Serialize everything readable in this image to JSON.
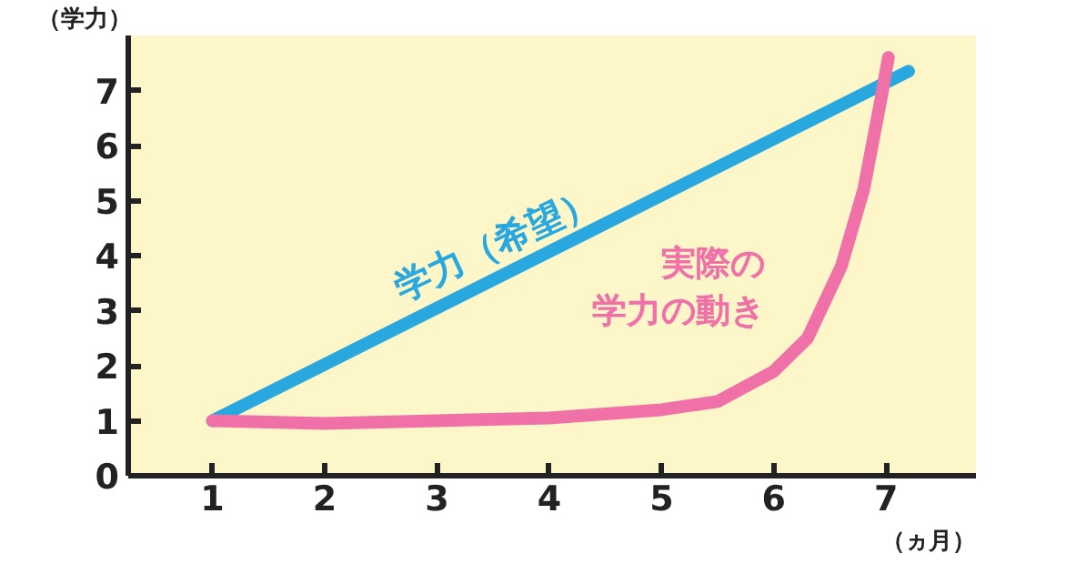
{
  "chart_data": {
    "type": "line",
    "xlabel": "（ヵ月）",
    "ylabel": "（学力）",
    "xlim": [
      0.25,
      7.8
    ],
    "ylim": [
      0,
      8
    ],
    "xticks": [
      1,
      2,
      3,
      4,
      5,
      6,
      7
    ],
    "yticks": [
      0,
      1,
      2,
      3,
      4,
      5,
      6,
      7
    ],
    "series": [
      {
        "name": "学力（希望）",
        "color": "#29a8e0",
        "x": [
          1,
          7.2
        ],
        "values": [
          1,
          7.35
        ]
      },
      {
        "name": "実際の学力の動き",
        "color": "#f070a8",
        "x": [
          1,
          2,
          3,
          4,
          5,
          5.5,
          6,
          6.3,
          6.6,
          6.8,
          6.95,
          7.02
        ],
        "values": [
          1,
          0.95,
          1.0,
          1.05,
          1.2,
          1.35,
          1.9,
          2.5,
          3.8,
          5.2,
          6.8,
          7.6
        ]
      }
    ]
  }
}
